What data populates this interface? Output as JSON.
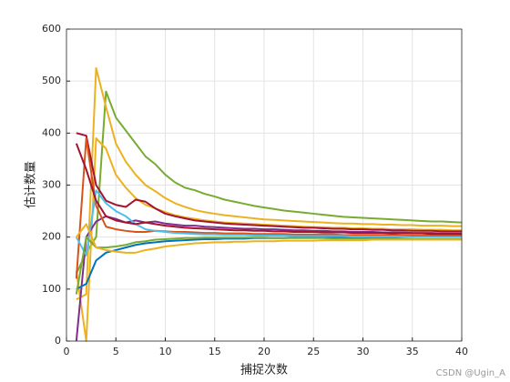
{
  "chart_data": {
    "type": "line",
    "xlabel": "捕捉次数",
    "ylabel": "估计数量",
    "watermark": "CSDN @Ugin_A",
    "xlim": [
      0,
      40
    ],
    "xticks": [
      0,
      5,
      10,
      15,
      20,
      25,
      30,
      35,
      40
    ],
    "ylim": [
      0,
      600
    ],
    "yticks": [
      0,
      100,
      200,
      300,
      400,
      500,
      600
    ],
    "grid": true,
    "x": [
      1,
      2,
      3,
      4,
      5,
      6,
      7,
      8,
      9,
      10,
      11,
      12,
      13,
      14,
      15,
      16,
      17,
      18,
      19,
      20,
      21,
      22,
      23,
      24,
      25,
      26,
      27,
      28,
      29,
      30,
      31,
      32,
      33,
      34,
      35,
      36,
      37,
      38,
      39,
      40
    ],
    "series": [
      {
        "color": "#77AC30",
        "values": [
          130,
          170,
          200,
          480,
          430,
          405,
          380,
          355,
          340,
          320,
          305,
          295,
          290,
          283,
          278,
          272,
          268,
          264,
          260,
          257,
          254,
          251,
          249,
          247,
          245,
          243,
          241,
          239,
          238,
          237,
          236,
          235,
          234,
          233,
          232,
          231,
          230,
          230,
          229,
          228
        ]
      },
      {
        "color": "#EDB120",
        "values": [
          80,
          90,
          525,
          450,
          380,
          345,
          320,
          300,
          288,
          275,
          265,
          258,
          252,
          248,
          245,
          242,
          240,
          238,
          236,
          234,
          233,
          232,
          231,
          230,
          229,
          228,
          227,
          226,
          226,
          225,
          225,
          224,
          224,
          223,
          223,
          222,
          222,
          222,
          221,
          221
        ]
      },
      {
        "color": "#EDB120",
        "values": [
          135,
          0,
          390,
          370,
          320,
          295,
          275,
          262,
          255,
          248,
          242,
          238,
          235,
          232,
          230,
          228,
          227,
          226,
          225,
          224,
          223,
          222,
          221,
          220,
          219,
          219,
          218,
          218,
          217,
          217,
          216,
          216,
          215,
          215,
          215,
          214,
          214,
          214,
          213,
          213
        ]
      },
      {
        "color": "#A2142F",
        "values": [
          400,
          395,
          300,
          270,
          262,
          258,
          272,
          268,
          255,
          245,
          240,
          236,
          232,
          230,
          228,
          226,
          225,
          224,
          223,
          222,
          221,
          220,
          219,
          218,
          218,
          217,
          216,
          216,
          215,
          215,
          214,
          214,
          213,
          213,
          212,
          212,
          212,
          211,
          211,
          211
        ]
      },
      {
        "color": "#7E2F8E",
        "values": [
          0,
          200,
          230,
          240,
          235,
          228,
          232,
          228,
          230,
          226,
          224,
          222,
          222,
          220,
          219,
          218,
          217,
          216,
          216,
          215,
          215,
          214,
          213,
          213,
          212,
          212,
          211,
          211,
          210,
          210,
          210,
          209,
          209,
          209,
          208,
          208,
          208,
          207,
          207,
          207
        ]
      },
      {
        "color": "#0072BD",
        "values": [
          100,
          110,
          155,
          170,
          175,
          180,
          185,
          188,
          190,
          192,
          193,
          194,
          195,
          196,
          196,
          197,
          197,
          197,
          198,
          198,
          198,
          198,
          199,
          199,
          199,
          199,
          199,
          200,
          200,
          200,
          200,
          200,
          200,
          200,
          200,
          201,
          201,
          201,
          201,
          201
        ]
      },
      {
        "color": "#D95319",
        "values": [
          120,
          390,
          260,
          220,
          215,
          212,
          210,
          210,
          212,
          211,
          210,
          210,
          209,
          208,
          208,
          207,
          207,
          207,
          206,
          206,
          206,
          206,
          205,
          205,
          205,
          205,
          205,
          204,
          204,
          204,
          204,
          204,
          204,
          203,
          203,
          203,
          203,
          203,
          203,
          203
        ]
      },
      {
        "color": "#4DBEEE",
        "values": [
          200,
          165,
          290,
          265,
          250,
          240,
          225,
          215,
          212,
          210,
          208,
          207,
          206,
          205,
          205,
          204,
          204,
          204,
          203,
          203,
          203,
          203,
          202,
          202,
          202,
          202,
          202,
          202,
          201,
          201,
          201,
          201,
          201,
          201,
          200,
          200,
          200,
          200,
          200,
          200
        ]
      },
      {
        "color": "#77AC30",
        "values": [
          90,
          200,
          180,
          180,
          182,
          185,
          190,
          192,
          195,
          196,
          197,
          198,
          198,
          199,
          199,
          199,
          199,
          199,
          199,
          199,
          198,
          198,
          198,
          198,
          198,
          198,
          197,
          197,
          197,
          197,
          197,
          197,
          197,
          196,
          196,
          196,
          196,
          196,
          196,
          196
        ]
      },
      {
        "color": "#EDB120",
        "values": [
          200,
          225,
          180,
          175,
          172,
          170,
          170,
          175,
          178,
          182,
          184,
          186,
          188,
          189,
          190,
          190,
          191,
          191,
          192,
          192,
          192,
          193,
          193,
          193,
          193,
          194,
          194,
          194,
          194,
          194,
          195,
          195,
          195,
          195,
          195,
          195,
          195,
          195,
          195,
          195
        ]
      },
      {
        "color": "#A2142F",
        "values": [
          380,
          330,
          270,
          240,
          232,
          228,
          225,
          228,
          225,
          222,
          220,
          218,
          217,
          216,
          215,
          214,
          213,
          213,
          212,
          212,
          211,
          211,
          210,
          210,
          210,
          209,
          209,
          209,
          208,
          208,
          208,
          208,
          207,
          207,
          207,
          207,
          206,
          206,
          206,
          206
        ]
      }
    ]
  }
}
